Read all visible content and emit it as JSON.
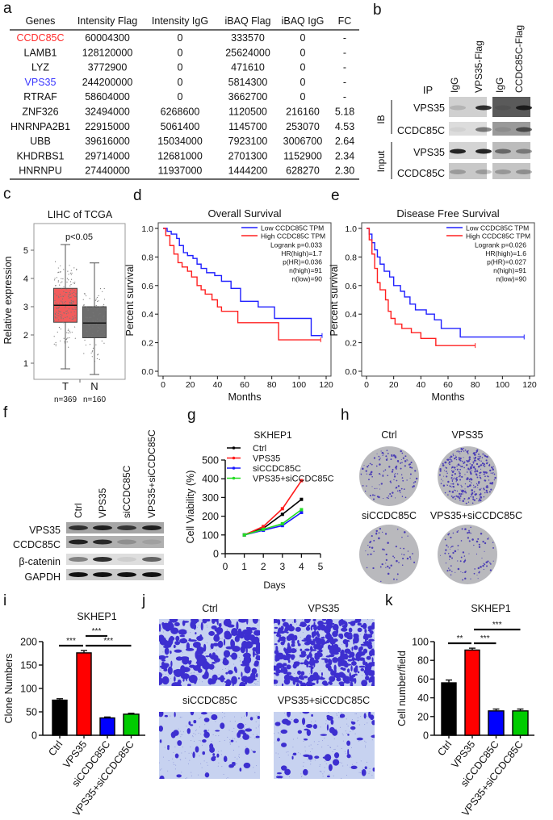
{
  "panel_labels": [
    "a",
    "b",
    "c",
    "d",
    "e",
    "f",
    "g",
    "h",
    "i",
    "j",
    "k"
  ],
  "table": {
    "headers": [
      "Genes",
      "Intensity Flag",
      "Intensity IgG",
      "iBAQ Flag",
      "iBAQ IgG",
      "FC"
    ],
    "rows": [
      [
        "CCDC85C",
        "60004300",
        "0",
        "333570",
        "0",
        "-"
      ],
      [
        "LAMB1",
        "128120000",
        "0",
        "25624000",
        "0",
        "-"
      ],
      [
        "LYZ",
        "3772900",
        "0",
        "471610",
        "0",
        "-"
      ],
      [
        "VPS35",
        "244200000",
        "0",
        "5814300",
        "0",
        "-"
      ],
      [
        "RTRAF",
        "58604000",
        "0",
        "3662700",
        "0",
        "-"
      ],
      [
        "ZNF326",
        "32494000",
        "6268600",
        "1120500",
        "216160",
        "5.18"
      ],
      [
        "HNRNPA2B1",
        "22915000",
        "5061400",
        "1145700",
        "253070",
        "4.53"
      ],
      [
        "UBB",
        "39616000",
        "15034000",
        "7923100",
        "3006700",
        "2.64"
      ],
      [
        "KHDRBS1",
        "29714000",
        "12681000",
        "2701300",
        "1152900",
        "2.34"
      ],
      [
        "HNRNPU",
        "27440000",
        "11937000",
        "1444200",
        "628270",
        "2.30"
      ]
    ],
    "highlight_colors": {
      "CCDC85C": "#ff2a2a",
      "VPS35": "#3a36ff"
    }
  },
  "panel_b": {
    "ip_label": "IP",
    "columns": [
      "IgG",
      "VPS35-Flag",
      "IgG",
      "CCDC85C-Flag"
    ],
    "ib_label": "IB",
    "input_label": "Input",
    "rows": [
      "VPS35",
      "CCDC85C",
      "VPS35",
      "CCDC85C"
    ],
    "band_intensity": [
      [
        0.15,
        0.85,
        0.1,
        0.85
      ],
      [
        0.05,
        0.5,
        0.1,
        0.6
      ],
      [
        0.9,
        0.9,
        0.5,
        0.4
      ],
      [
        0.25,
        0.25,
        0.25,
        0.3
      ]
    ]
  },
  "panel_f": {
    "columns": [
      "Ctrl",
      "VPS35",
      "siCCDC85C",
      "VPS35+siCCDC85C"
    ],
    "rows": [
      "VPS35",
      "CCDC85C",
      "β-catenin",
      "GAPDH"
    ],
    "band_intensity": [
      [
        0.8,
        0.9,
        0.75,
        0.9
      ],
      [
        0.9,
        0.85,
        0.2,
        0.1
      ],
      [
        0.45,
        0.85,
        0.08,
        0.6
      ],
      [
        1,
        1,
        1,
        1
      ]
    ]
  },
  "panel_h": {
    "labels": [
      "Ctrl",
      "VPS35",
      "siCCDC85C",
      "VPS35+siCCDC85C"
    ]
  },
  "panel_j": {
    "labels": [
      "Ctrl",
      "VPS35",
      "siCCDC85C",
      "VPS35+siCCDC85C"
    ]
  },
  "chart_data": [
    {
      "type": "box",
      "title": "LIHC of TCGA",
      "ylabel": "Relative expression",
      "categories": [
        "T",
        "N"
      ],
      "counts": [
        "n=369",
        "n=160"
      ],
      "annotation": "p<0.05",
      "yticks": [
        "1",
        "2",
        "3",
        "4",
        "5"
      ],
      "stats": [
        {
          "min": 0.8,
          "q1": 2.45,
          "median": 3.05,
          "q3": 3.65,
          "max": 5.2,
          "color": "#f25c5c"
        },
        {
          "min": 0.6,
          "q1": 1.9,
          "median": 2.42,
          "q3": 3.0,
          "max": 4.55,
          "color": "#6e6e6e"
        }
      ]
    },
    {
      "type": "line",
      "title": "Overall Survival",
      "xlabel": "Months",
      "ylabel": "Percent survival",
      "xlim": [
        0,
        120
      ],
      "ylim": [
        0,
        1
      ],
      "xticks": [
        "0",
        "20",
        "40",
        "60",
        "80",
        "100",
        "120"
      ],
      "yticks": [
        "0.0",
        "0.2",
        "0.4",
        "0.6",
        "0.8",
        "1.0"
      ],
      "series": [
        {
          "name": "Low CCDC85C TPM",
          "color": "#2020ff",
          "points": [
            [
              0,
              1
            ],
            [
              3,
              0.98
            ],
            [
              6,
              0.96
            ],
            [
              10,
              0.93
            ],
            [
              12,
              0.88
            ],
            [
              15,
              0.83
            ],
            [
              18,
              0.81
            ],
            [
              22,
              0.79
            ],
            [
              25,
              0.75
            ],
            [
              28,
              0.72
            ],
            [
              32,
              0.69
            ],
            [
              38,
              0.67
            ],
            [
              43,
              0.63
            ],
            [
              50,
              0.58
            ],
            [
              57,
              0.49
            ],
            [
              70,
              0.45
            ],
            [
              82,
              0.37
            ],
            [
              109,
              0.25
            ],
            [
              117,
              0.25
            ]
          ]
        },
        {
          "name": "High CCDC85C TPM",
          "color": "#ff2020",
          "points": [
            [
              0,
              1
            ],
            [
              2,
              0.95
            ],
            [
              5,
              0.88
            ],
            [
              8,
              0.82
            ],
            [
              11,
              0.76
            ],
            [
              14,
              0.73
            ],
            [
              18,
              0.7
            ],
            [
              21,
              0.66
            ],
            [
              25,
              0.6
            ],
            [
              28,
              0.57
            ],
            [
              31,
              0.54
            ],
            [
              36,
              0.5
            ],
            [
              40,
              0.45
            ],
            [
              43,
              0.42
            ],
            [
              55,
              0.34
            ],
            [
              85,
              0.22
            ],
            [
              116,
              0.22
            ]
          ]
        }
      ],
      "stats": [
        "Logrank p=0.033",
        "HR(high)=1.7",
        "p(HR)=0.036",
        "n(high)=91",
        "n(low)=90"
      ],
      "legend": "top-right"
    },
    {
      "type": "line",
      "title": "Disease Free Survival",
      "xlabel": "Months",
      "ylabel": "Percent survival",
      "xlim": [
        0,
        120
      ],
      "ylim": [
        0,
        1
      ],
      "xticks": [
        "0",
        "20",
        "40",
        "60",
        "80",
        "100",
        "120"
      ],
      "yticks": [
        "0.0",
        "0.2",
        "0.4",
        "0.6",
        "0.8",
        "1.0"
      ],
      "series": [
        {
          "name": "Low CCDC85C TPM",
          "color": "#2020ff",
          "points": [
            [
              0,
              1
            ],
            [
              2,
              0.96
            ],
            [
              4,
              0.9
            ],
            [
              6,
              0.85
            ],
            [
              8,
              0.8
            ],
            [
              10,
              0.75
            ],
            [
              13,
              0.7
            ],
            [
              17,
              0.66
            ],
            [
              20,
              0.6
            ],
            [
              25,
              0.56
            ],
            [
              28,
              0.52
            ],
            [
              32,
              0.47
            ],
            [
              36,
              0.43
            ],
            [
              44,
              0.4
            ],
            [
              50,
              0.36
            ],
            [
              55,
              0.3
            ],
            [
              69,
              0.24
            ],
            [
              116,
              0.24
            ]
          ]
        },
        {
          "name": "High CCDC85C TPM",
          "color": "#ff2020",
          "points": [
            [
              0,
              1
            ],
            [
              2,
              0.92
            ],
            [
              4,
              0.82
            ],
            [
              6,
              0.72
            ],
            [
              8,
              0.62
            ],
            [
              10,
              0.57
            ],
            [
              14,
              0.5
            ],
            [
              16,
              0.42
            ],
            [
              18,
              0.37
            ],
            [
              21,
              0.33
            ],
            [
              26,
              0.3
            ],
            [
              33,
              0.27
            ],
            [
              40,
              0.23
            ],
            [
              51,
              0.18
            ],
            [
              80,
              0.18
            ]
          ]
        }
      ],
      "stats": [
        "Logrank p=0.026",
        "HR(high)=1.6",
        "p(HR)=0.027",
        "n(high)=91",
        "n(low)=90"
      ],
      "legend": "top-right"
    },
    {
      "type": "line",
      "title": "SKHEP1",
      "xlabel": "Days",
      "ylabel": "Cell Viability (%)",
      "xlim": [
        0,
        5
      ],
      "ylim": [
        0,
        500
      ],
      "xticks": [
        "0",
        "1",
        "2",
        "3",
        "4",
        "5"
      ],
      "yticks": [
        "0",
        "100",
        "200",
        "300",
        "400",
        "500"
      ],
      "x": [
        1,
        2,
        3,
        4
      ],
      "series": [
        {
          "name": "Ctrl",
          "color": "#000000",
          "values": [
            100,
            135,
            210,
            290
          ]
        },
        {
          "name": "VPS35",
          "color": "#ff1a1a",
          "values": [
            100,
            145,
            240,
            390
          ]
        },
        {
          "name": "siCCDC85C",
          "color": "#1a1aff",
          "values": [
            100,
            125,
            150,
            220
          ]
        },
        {
          "name": "VPS35+siCCDC85C",
          "color": "#22dd22",
          "values": [
            100,
            130,
            160,
            235
          ]
        }
      ],
      "legend": "top-left"
    },
    {
      "type": "bar",
      "title": "SKHEP1",
      "ylabel": "Clone Numbers",
      "ylim": [
        0,
        200
      ],
      "yticks": [
        "0",
        "50",
        "100",
        "150",
        "200"
      ],
      "categories": [
        "Ctrl",
        "VPS35",
        "siCCDC85C",
        "VPS35+siCCDC85C"
      ],
      "values": [
        75,
        176,
        37,
        45
      ],
      "errors": [
        3,
        5,
        2,
        2
      ],
      "colors": [
        "#000000",
        "#ff0000",
        "#0000ff",
        "#00cc00"
      ],
      "significance": [
        {
          "pair": [
            0,
            1
          ],
          "label": "***"
        },
        {
          "pair": [
            1,
            2
          ],
          "label": "***"
        },
        {
          "pair": [
            1,
            3
          ],
          "label": "***"
        }
      ]
    },
    {
      "type": "bar",
      "title": "SKHEP1",
      "ylabel": "Cell number/field",
      "ylim": [
        0,
        100
      ],
      "yticks": [
        "0",
        "20",
        "40",
        "60",
        "80",
        "100"
      ],
      "categories": [
        "Ctrl",
        "VPS35",
        "siCCDC85C",
        "VPS35+siCCDC85C"
      ],
      "values": [
        56,
        91,
        26,
        26
      ],
      "errors": [
        3,
        2,
        2,
        2
      ],
      "colors": [
        "#000000",
        "#ff0000",
        "#0000ff",
        "#00cc00"
      ],
      "significance": [
        {
          "pair": [
            0,
            1
          ],
          "label": "**"
        },
        {
          "pair": [
            1,
            2
          ],
          "label": "***"
        },
        {
          "pair": [
            1,
            3
          ],
          "label": "***"
        }
      ]
    }
  ]
}
